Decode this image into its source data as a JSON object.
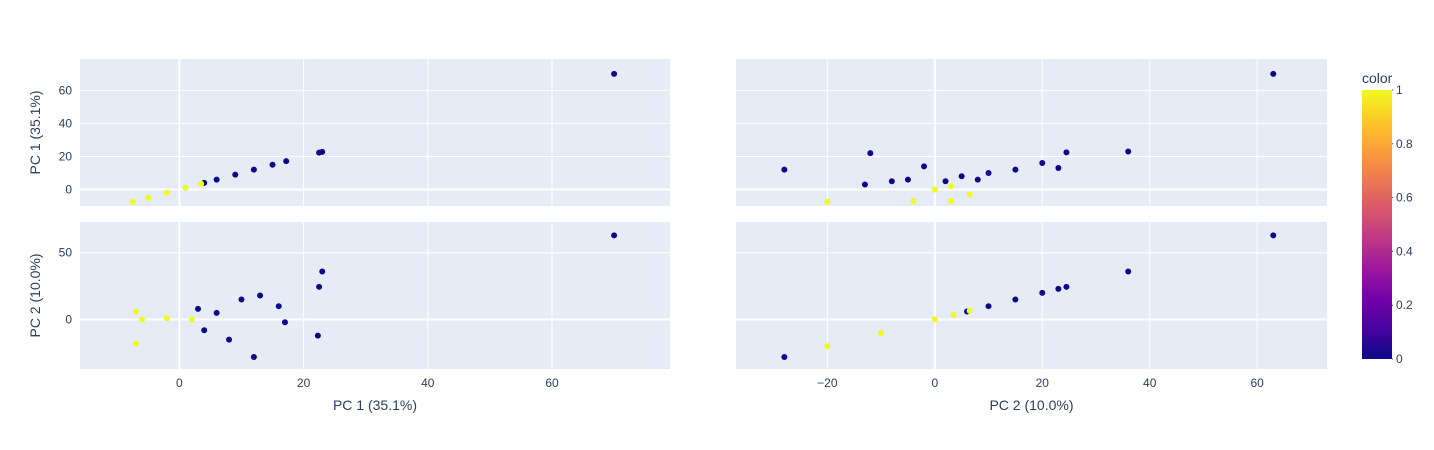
{
  "chart_data": {
    "type": "scatter",
    "subtype": "scatter-matrix",
    "dimensions": [
      "PC 1 (35.1%)",
      "PC 2 (10.0%)"
    ],
    "plot_background": "#e5ecf6",
    "grid": true,
    "legend": "none",
    "colorbar": {
      "title": "color",
      "range": [
        0,
        1
      ],
      "ticks": [
        "0",
        "0.2",
        "0.4",
        "0.6",
        "0.8",
        "1"
      ],
      "placement": "right",
      "colorscale": [
        "#0d0887",
        "#46039f",
        "#7201a8",
        "#9c179e",
        "#bd3786",
        "#d8576b",
        "#ed7953",
        "#fb9f3a",
        "#fdca26",
        "#f0f921"
      ]
    },
    "axes": {
      "PC 1 (35.1%)": {
        "range": [
          -16,
          79
        ],
        "ticks": [
          0,
          20,
          40,
          60
        ],
        "tick_labels": [
          "0",
          "20",
          "40",
          "60"
        ],
        "range_y": [
          -10,
          79
        ],
        "ticks_y": [
          0,
          20,
          40,
          60
        ],
        "tick_labels_y": [
          "0",
          "20",
          "40",
          "60"
        ]
      },
      "PC 2 (10.0%)": {
        "range": [
          -37,
          73
        ],
        "ticks": [
          -20,
          0,
          20,
          40,
          60
        ],
        "tick_labels": [
          "−20",
          "0",
          "20",
          "40",
          "60"
        ],
        "range_y": [
          -37,
          73
        ],
        "ticks_y": [
          0,
          50
        ],
        "tick_labels_y": [
          "0",
          "50"
        ]
      }
    },
    "panels": [
      {
        "row": "PC 1 (35.1%)",
        "col": "PC 1 (35.1%)",
        "points": [
          {
            "x": 70,
            "y": 70,
            "c": 0
          },
          {
            "x": 22.5,
            "y": 22.3,
            "c": 0
          },
          {
            "x": 23,
            "y": 22.8,
            "c": 0
          },
          {
            "x": 17.2,
            "y": 17.2,
            "c": 0
          },
          {
            "x": 15,
            "y": 15,
            "c": 0
          },
          {
            "x": 12,
            "y": 12,
            "c": 0
          },
          {
            "x": 9,
            "y": 9,
            "c": 0
          },
          {
            "x": 6,
            "y": 6,
            "c": 0
          },
          {
            "x": 4,
            "y": 4,
            "c": 0
          },
          {
            "x": 3.5,
            "y": 3.5,
            "c": 1
          },
          {
            "x": 1,
            "y": 1,
            "c": 1
          },
          {
            "x": -2,
            "y": -2,
            "c": 1
          },
          {
            "x": -5,
            "y": -5,
            "c": 1
          },
          {
            "x": -7.5,
            "y": -7.5,
            "c": 1
          }
        ]
      },
      {
        "row": "PC 1 (35.1%)",
        "col": "PC 2 (10.0%)",
        "points": [
          {
            "x": 63,
            "y": 70,
            "c": 0
          },
          {
            "x": 36,
            "y": 23,
            "c": 0
          },
          {
            "x": 24.5,
            "y": 22.5,
            "c": 0
          },
          {
            "x": 23,
            "y": 13,
            "c": 0
          },
          {
            "x": -28,
            "y": 12,
            "c": 0
          },
          {
            "x": -12,
            "y": 22,
            "c": 0
          },
          {
            "x": 20,
            "y": 16,
            "c": 0
          },
          {
            "x": 15,
            "y": 12,
            "c": 0
          },
          {
            "x": 10,
            "y": 10,
            "c": 0
          },
          {
            "x": 5,
            "y": 8,
            "c": 0
          },
          {
            "x": -2,
            "y": 14,
            "c": 0
          },
          {
            "x": -5,
            "y": 6,
            "c": 0
          },
          {
            "x": -8,
            "y": 5,
            "c": 0
          },
          {
            "x": 2,
            "y": 5,
            "c": 0
          },
          {
            "x": 8,
            "y": 6,
            "c": 0
          },
          {
            "x": -13,
            "y": 3,
            "c": 0
          },
          {
            "x": 6.5,
            "y": -3,
            "c": 1
          },
          {
            "x": 3,
            "y": 2,
            "c": 1
          },
          {
            "x": 0,
            "y": 0,
            "c": 1
          },
          {
            "x": -4,
            "y": -7,
            "c": 1
          },
          {
            "x": -20,
            "y": -7.5,
            "c": 1
          },
          {
            "x": 3,
            "y": -7,
            "c": 1
          }
        ]
      },
      {
        "row": "PC 2 (10.0%)",
        "col": "PC 1 (35.1%)",
        "points": [
          {
            "x": 70,
            "y": 63,
            "c": 0
          },
          {
            "x": 23,
            "y": 36,
            "c": 0
          },
          {
            "x": 22.5,
            "y": 24.5,
            "c": 0
          },
          {
            "x": 22.3,
            "y": -12,
            "c": 0
          },
          {
            "x": 12,
            "y": -28,
            "c": 0
          },
          {
            "x": 17,
            "y": -2,
            "c": 0
          },
          {
            "x": 16,
            "y": 10,
            "c": 0
          },
          {
            "x": 13,
            "y": 18,
            "c": 0
          },
          {
            "x": 10,
            "y": 15,
            "c": 0
          },
          {
            "x": 8,
            "y": -15,
            "c": 0
          },
          {
            "x": 6,
            "y": 5,
            "c": 0
          },
          {
            "x": 4,
            "y": -8,
            "c": 0
          },
          {
            "x": 3,
            "y": 8,
            "c": 0
          },
          {
            "x": 2,
            "y": 0,
            "c": 1
          },
          {
            "x": -2,
            "y": 1,
            "c": 1
          },
          {
            "x": -6,
            "y": 0,
            "c": 1
          },
          {
            "x": -7,
            "y": -18,
            "c": 1
          },
          {
            "x": -7,
            "y": 6,
            "c": 1
          }
        ]
      },
      {
        "row": "PC 2 (10.0%)",
        "col": "PC 2 (10.0%)",
        "points": [
          {
            "x": 63,
            "y": 63,
            "c": 0
          },
          {
            "x": 36,
            "y": 36,
            "c": 0
          },
          {
            "x": 24.5,
            "y": 24.5,
            "c": 0
          },
          {
            "x": 23,
            "y": 23,
            "c": 0
          },
          {
            "x": -28,
            "y": -28,
            "c": 0
          },
          {
            "x": 20,
            "y": 20,
            "c": 0
          },
          {
            "x": 15,
            "y": 15,
            "c": 0
          },
          {
            "x": 10,
            "y": 10,
            "c": 0
          },
          {
            "x": 6,
            "y": 6,
            "c": 0
          },
          {
            "x": 6.5,
            "y": 6.5,
            "c": 1
          },
          {
            "x": 3.5,
            "y": 3.5,
            "c": 1
          },
          {
            "x": 0,
            "y": 0,
            "c": 1
          },
          {
            "x": -10,
            "y": -10,
            "c": 1
          },
          {
            "x": -20,
            "y": -20,
            "c": 1
          }
        ]
      }
    ]
  }
}
